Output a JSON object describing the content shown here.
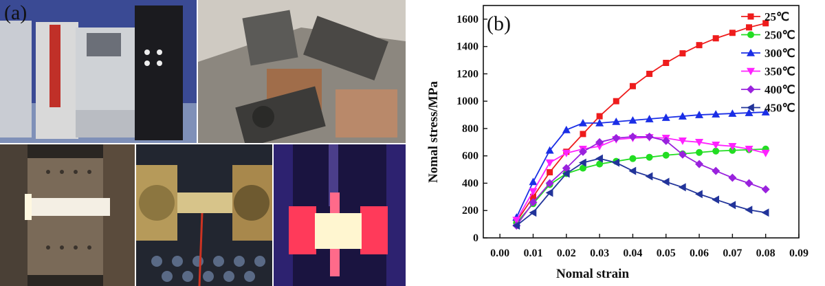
{
  "panels": {
    "left_label": "(a)",
    "right_label": "(b)"
  },
  "photos": [
    {
      "name": "testing-machine-photo"
    },
    {
      "name": "clamp-fixture-photo"
    },
    {
      "name": "heated-chamber-photo"
    },
    {
      "name": "grips-assembly-photo"
    },
    {
      "name": "glowing-specimen-photo"
    }
  ],
  "chart_data": {
    "type": "line",
    "xlabel": "Nomal strain",
    "ylabel": "Nomal stress/MPa",
    "xlim": [
      -0.005,
      0.09
    ],
    "ylim": [
      0,
      1700
    ],
    "xticks": [
      "0.00",
      "0.01",
      "0.02",
      "0.03",
      "0.04",
      "0.05",
      "0.06",
      "0.07",
      "0.08",
      "0.09"
    ],
    "xtick_values": [
      0,
      0.01,
      0.02,
      0.03,
      0.04,
      0.05,
      0.06,
      0.07,
      0.08,
      0.09
    ],
    "yticks": [
      "0",
      "200",
      "400",
      "600",
      "800",
      "1000",
      "1200",
      "1400",
      "1600"
    ],
    "ytick_values": [
      0,
      200,
      400,
      600,
      800,
      1000,
      1200,
      1400,
      1600
    ],
    "legend_position": "top-right",
    "x": [
      0.005,
      0.01,
      0.015,
      0.02,
      0.025,
      0.03,
      0.035,
      0.04,
      0.045,
      0.05,
      0.055,
      0.06,
      0.065,
      0.07,
      0.075,
      0.08
    ],
    "series": [
      {
        "name": "25℃",
        "color": "#ee1c1c",
        "marker": "square",
        "values": [
          120,
          300,
          480,
          630,
          760,
          890,
          1000,
          1110,
          1200,
          1280,
          1350,
          1410,
          1460,
          1500,
          1540,
          1570
        ]
      },
      {
        "name": "250℃",
        "color": "#22dd22",
        "marker": "circle",
        "values": [
          110,
          250,
          390,
          470,
          510,
          540,
          560,
          580,
          590,
          605,
          615,
          625,
          635,
          640,
          645,
          650
        ]
      },
      {
        "name": "300℃",
        "color": "#1a2ee6",
        "marker": "triangle-up",
        "values": [
          150,
          410,
          640,
          790,
          840,
          840,
          850,
          860,
          870,
          880,
          890,
          900,
          905,
          910,
          915,
          920
        ]
      },
      {
        "name": "350℃",
        "color": "#ff22ff",
        "marker": "triangle-down",
        "values": [
          130,
          340,
          550,
          620,
          650,
          670,
          720,
          730,
          735,
          730,
          710,
          700,
          680,
          670,
          650,
          620
        ]
      },
      {
        "name": "400℃",
        "color": "#9922dd",
        "marker": "diamond",
        "values": [
          90,
          260,
          400,
          510,
          630,
          700,
          730,
          740,
          740,
          710,
          610,
          540,
          490,
          440,
          400,
          355
        ]
      },
      {
        "name": "450℃",
        "color": "#22349a",
        "marker": "triangle-left",
        "values": [
          90,
          185,
          330,
          470,
          550,
          580,
          550,
          490,
          450,
          410,
          370,
          320,
          280,
          240,
          205,
          185
        ]
      }
    ]
  }
}
